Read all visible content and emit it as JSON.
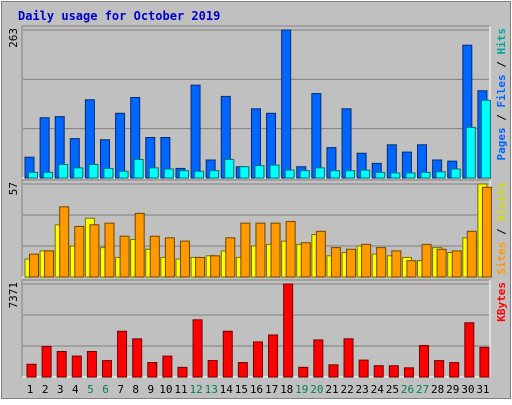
{
  "chart_data": [
    {
      "type": "bar",
      "title": "Daily usage for October 2019",
      "categories": [
        "1",
        "2",
        "3",
        "4",
        "5",
        "6",
        "7",
        "8",
        "9",
        "10",
        "11",
        "12",
        "13",
        "14",
        "15",
        "16",
        "17",
        "18",
        "19",
        "20",
        "21",
        "22",
        "23",
        "24",
        "25",
        "26",
        "27",
        "28",
        "29",
        "30",
        "31"
      ],
      "weekend_days": [
        "5",
        "6",
        "12",
        "13",
        "19",
        "20",
        "26",
        "27"
      ],
      "ymax_label": "263",
      "ylim": [
        0,
        263
      ],
      "grid": true,
      "series": [
        {
          "name": "Pages",
          "color": "#0000ff",
          "values": [
            0,
            0,
            0,
            0,
            0,
            0,
            0,
            0,
            0,
            0,
            0,
            0,
            0,
            0,
            0,
            0,
            0,
            0,
            0,
            0,
            0,
            0,
            0,
            0,
            0,
            0,
            0,
            0,
            0,
            0,
            0
          ]
        },
        {
          "name": "Files",
          "color": "#0066ff",
          "values": [
            37,
            107,
            109,
            70,
            139,
            68,
            115,
            143,
            72,
            72,
            17,
            165,
            32,
            145,
            20,
            123,
            115,
            263,
            20,
            150,
            54,
            123,
            44,
            26,
            59,
            46,
            59,
            32,
            30,
            236,
            155
          ]
        },
        {
          "name": "Hits",
          "color": "#00ffff",
          "values": [
            10,
            10,
            24,
            18,
            24,
            17,
            12,
            33,
            18,
            16,
            13,
            12,
            13,
            33,
            20,
            22,
            23,
            14,
            13,
            18,
            13,
            13,
            14,
            10,
            9,
            9,
            10,
            11,
            16,
            90,
            138
          ]
        }
      ],
      "right_legend": [
        {
          "text": "Pages",
          "color": "#0066ff"
        },
        {
          "text": " / ",
          "color": "#000000"
        },
        {
          "text": "Files",
          "color": "#0066ff"
        },
        {
          "text": " / ",
          "color": "#000000"
        },
        {
          "text": "Hits",
          "color": "#00aa99"
        }
      ]
    },
    {
      "type": "bar",
      "ymax_label": "57",
      "ylim": [
        0,
        57
      ],
      "grid": true,
      "series": [
        {
          "name": "Visits",
          "color": "#ffff00",
          "values": [
            11,
            16,
            32,
            19,
            36,
            18,
            12,
            23,
            17,
            12,
            11,
            12,
            13,
            16,
            12,
            19,
            20,
            22,
            20,
            26,
            13,
            15,
            19,
            14,
            13,
            12,
            10,
            18,
            15,
            24,
            57
          ]
        },
        {
          "name": "Sites",
          "color": "#ff9900",
          "values": [
            14,
            16,
            43,
            31,
            32,
            33,
            25,
            39,
            25,
            24,
            22,
            12,
            13,
            24,
            33,
            33,
            33,
            34,
            21,
            28,
            18,
            17,
            20,
            18,
            16,
            10,
            20,
            17,
            16,
            28,
            55
          ]
        }
      ],
      "right_legend": [
        {
          "text": "Sites",
          "color": "#ff9900"
        },
        {
          "text": " / ",
          "color": "#000000"
        },
        {
          "text": "Visits",
          "color": "#dddd00"
        }
      ]
    },
    {
      "type": "bar",
      "ymax_label": "7371",
      "ylim": [
        0,
        7371
      ],
      "grid": true,
      "series": [
        {
          "name": "KBytes",
          "color": "#ff0000",
          "values": [
            1010,
            2422,
            2020,
            1660,
            2020,
            1300,
            3626,
            3024,
            1147,
            1655,
            763,
            4531,
            1308,
            3627,
            1147,
            2779,
            3330,
            7371,
            766,
            2939,
            966,
            3024,
            1340,
            893,
            893,
            726,
            2500,
            1300,
            1140,
            4300,
            2350
          ]
        }
      ],
      "right_legend": [
        {
          "text": "KBytes",
          "color": "#ff0000"
        }
      ]
    }
  ]
}
